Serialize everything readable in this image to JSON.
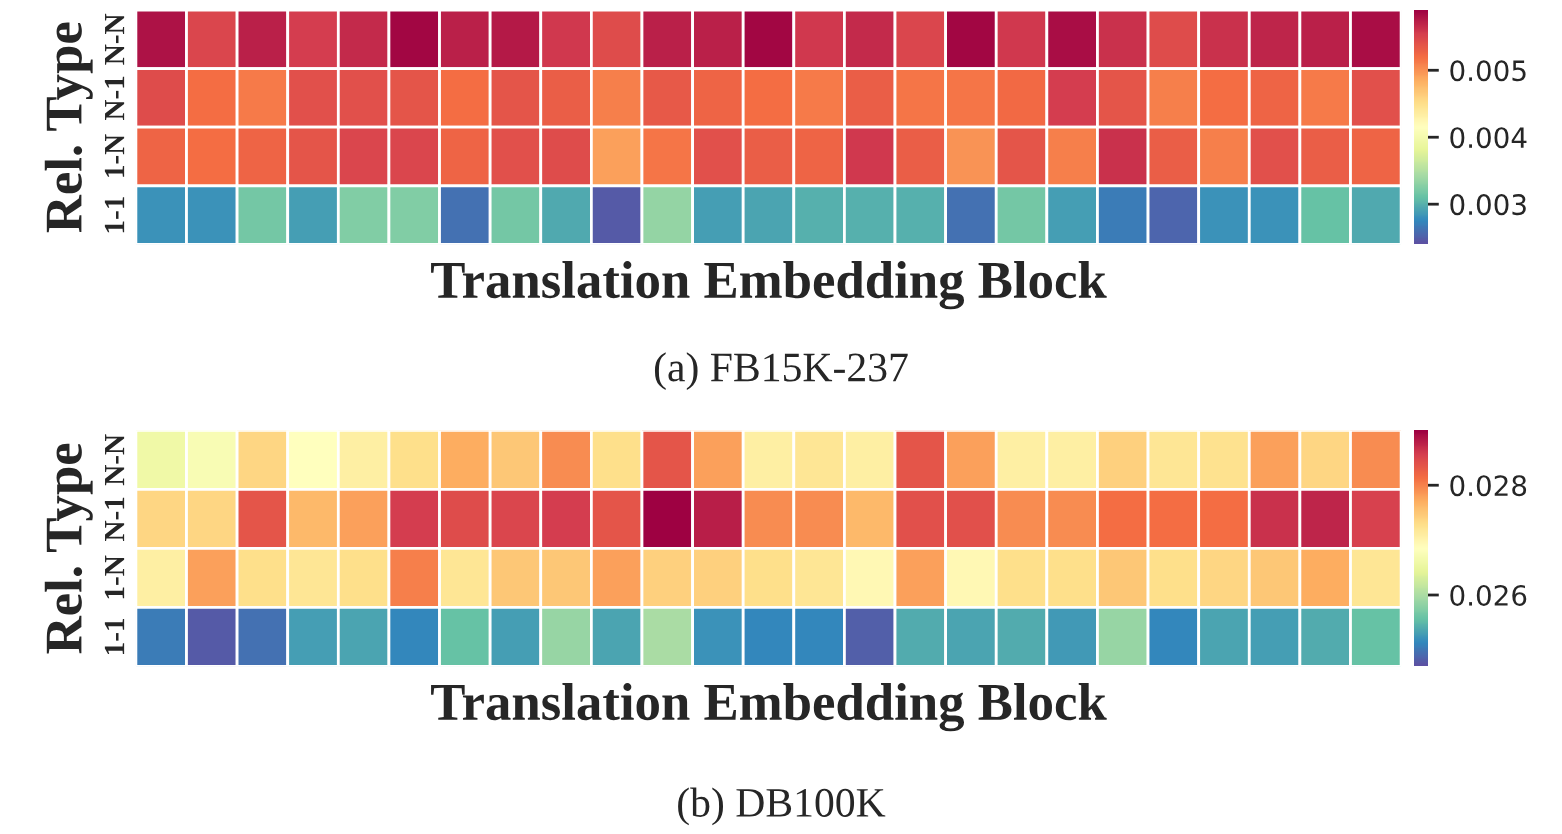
{
  "chart_data": [
    {
      "type": "heatmap",
      "xlabel": "Translation Embedding Block",
      "ylabel": "Rel. Type",
      "annotations": [
        "(a) FB15K-237"
      ],
      "categories": [
        null,
        null,
        null,
        null,
        null,
        null,
        null,
        null,
        null,
        null,
        null,
        null,
        null,
        null,
        null,
        null,
        null,
        null,
        null,
        null,
        null,
        null,
        null,
        null,
        null
      ],
      "y_categories": [
        "N-N",
        "N-1",
        "1-N",
        "1-1"
      ],
      "cells": [
        [
          0.0058,
          0.00548,
          0.00572,
          0.00555,
          0.00566,
          0.00587,
          0.00572,
          0.00576,
          0.00558,
          0.00544,
          0.00572,
          0.00572,
          0.00587,
          0.00558,
          0.00566,
          0.00548,
          0.00587,
          0.00558,
          0.00583,
          0.00562,
          0.00544,
          0.00562,
          0.00569,
          0.00572,
          0.00583
        ],
        [
          0.00544,
          0.0052,
          0.00513,
          0.00541,
          0.00541,
          0.00538,
          0.0052,
          0.00538,
          0.0053,
          0.0051,
          0.00534,
          0.00527,
          0.0052,
          0.00513,
          0.0053,
          0.00516,
          0.00516,
          0.00523,
          0.00555,
          0.00538,
          0.0051,
          0.0052,
          0.00527,
          0.00513,
          0.00541
        ],
        [
          0.00527,
          0.0052,
          0.00527,
          0.00538,
          0.00548,
          0.00548,
          0.00527,
          0.00541,
          0.00544,
          0.00492,
          0.00516,
          0.00541,
          0.0053,
          0.00527,
          0.00558,
          0.0053,
          0.00499,
          0.00538,
          0.0051,
          0.00562,
          0.0053,
          0.0051,
          0.00541,
          0.0053,
          0.00527
        ],
        [
          0.00282,
          0.00282,
          0.00317,
          0.00289,
          0.00324,
          0.00324,
          0.00261,
          0.00317,
          0.00296,
          0.00247,
          0.00334,
          0.00289,
          0.00292,
          0.003,
          0.003,
          0.003,
          0.00261,
          0.00317,
          0.00289,
          0.00268,
          0.00254,
          0.00282,
          0.00282,
          0.0031,
          0.00296
        ]
      ],
      "clim": [
        0.0024,
        0.0059
      ],
      "cticks": [
        0.003,
        0.004,
        0.005
      ]
    },
    {
      "type": "heatmap",
      "xlabel": "Translation Embedding Block",
      "ylabel": "Rel. Type",
      "annotations": [
        "(b) DB100K"
      ],
      "categories": [
        null,
        null,
        null,
        null,
        null,
        null,
        null,
        null,
        null,
        null,
        null,
        null,
        null,
        null,
        null,
        null,
        null,
        null,
        null,
        null,
        null,
        null,
        null,
        null,
        null
      ],
      "y_categories": [
        "N-N",
        "N-1",
        "1-N",
        "1-1"
      ],
      "cells": [
        [
          0.02659,
          0.02672,
          0.02737,
          0.02685,
          0.02707,
          0.02728,
          0.02771,
          0.0275,
          0.02793,
          0.02728,
          0.02836,
          0.0278,
          0.02707,
          0.02719,
          0.02707,
          0.02836,
          0.0278,
          0.02707,
          0.02707,
          0.02741,
          0.02719,
          0.02724,
          0.0278,
          0.02737,
          0.02793
        ],
        [
          0.02737,
          0.02737,
          0.02836,
          0.02762,
          0.0278,
          0.02857,
          0.02844,
          0.02848,
          0.02857,
          0.02836,
          0.029,
          0.02879,
          0.02793,
          0.02793,
          0.02762,
          0.0284,
          0.0284,
          0.02793,
          0.02793,
          0.02814,
          0.02814,
          0.02814,
          0.02866,
          0.02874,
          0.02853
        ],
        [
          0.02707,
          0.0278,
          0.02728,
          0.02719,
          0.02728,
          0.02801,
          0.02719,
          0.0275,
          0.0275,
          0.0278,
          0.02741,
          0.02741,
          0.02728,
          0.02719,
          0.02694,
          0.0278,
          0.02694,
          0.02728,
          0.02728,
          0.0275,
          0.02728,
          0.02737,
          0.0275,
          0.02771,
          0.02719
        ],
        [
          0.02504,
          0.02479,
          0.02496,
          0.0253,
          0.02535,
          0.02513,
          0.02556,
          0.0253,
          0.02586,
          0.02535,
          0.02599,
          0.02522,
          0.02513,
          0.02513,
          0.02483,
          0.02539,
          0.02535,
          0.02539,
          0.02526,
          0.02586,
          0.02513,
          0.02535,
          0.0253,
          0.02539,
          0.02556
        ]
      ],
      "clim": [
        0.0247,
        0.029
      ],
      "cticks": [
        0.026,
        0.028
      ]
    }
  ]
}
